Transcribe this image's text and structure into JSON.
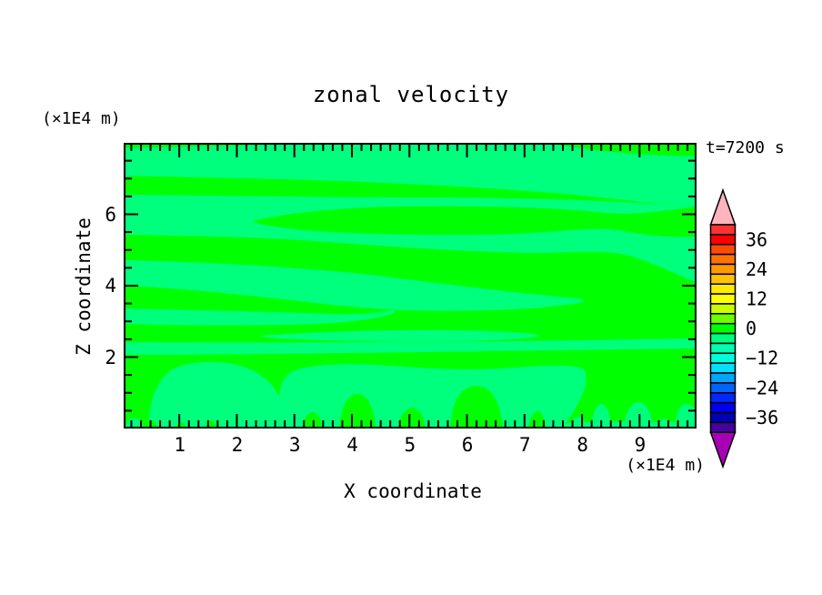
{
  "title": "zonal velocity",
  "annotation": "t=7200 s",
  "x_axis": {
    "label": "X coordinate",
    "unit": "(×1E4 m)",
    "tick_labels": [
      "1",
      "2",
      "3",
      "4",
      "5",
      "6",
      "7",
      "8",
      "9"
    ],
    "range": [
      0,
      10
    ]
  },
  "y_axis": {
    "label": "Z coordinate",
    "unit": "(×1E4 m)",
    "tick_labels": [
      "6",
      "4",
      "2"
    ],
    "tick_values": [
      6,
      4,
      2
    ],
    "range": [
      0,
      8
    ]
  },
  "colorbar": {
    "labels": [
      "36",
      "24",
      "12",
      "0",
      "−12",
      "−24",
      "−36"
    ],
    "label_segment_index": [
      1,
      4,
      7,
      10,
      13,
      16,
      19
    ],
    "segment_colors": [
      "#FF3232",
      "#FF0000",
      "#FF4B00",
      "#FF7300",
      "#FF9B00",
      "#FFC300",
      "#FFEB00",
      "#FFFF00",
      "#C8FF00",
      "#6EFF00",
      "#00FF00",
      "#00FF7D",
      "#00FFAF",
      "#00FFDC",
      "#00E1FF",
      "#00A5FF",
      "#0064FF",
      "#0028FF",
      "#0000F0",
      "#0000B4",
      "#46009B"
    ],
    "arrow_top_color": "#FFB4BE",
    "arrow_bottom_color": "#A800B4"
  },
  "colors": {
    "field_background_green": "#00FF00",
    "field_band_green": "#00FF7D",
    "frame": "#000000"
  },
  "chart_data": {
    "type": "heatmap",
    "subtype": "filled-contour",
    "title": "zonal velocity",
    "xlabel": "X coordinate (×1E4 m)",
    "ylabel": "Z coordinate (×1E4 m)",
    "xlim": [
      0,
      10
    ],
    "ylim": [
      0,
      8
    ],
    "time_annotation": "t=7200 s",
    "colorbar_tick_values": [
      36,
      24,
      12,
      0,
      -12,
      -24,
      -36
    ],
    "contour_interval": 4,
    "value_range_shown": [
      -6,
      2
    ],
    "regions": [
      {
        "value_range": [
          -2,
          2
        ],
        "color": "#00FF00",
        "description": "near-zero zonal velocity background over most of the domain"
      },
      {
        "value_range": [
          -6,
          -2
        ],
        "color": "#00FF7D",
        "description": "weak easterly bands: wavy horizontal layers near z≈7.5-7.9, z≈5.5-6.2 (enclosing a near-zero lens at 2.3<x<8.7), z≈4.0-4.8 tapering toward x≈8, thin layers near z≈2.4 and z≈2.1, and convective plumes/domes rising from the surface below z≈1.8"
      }
    ]
  }
}
